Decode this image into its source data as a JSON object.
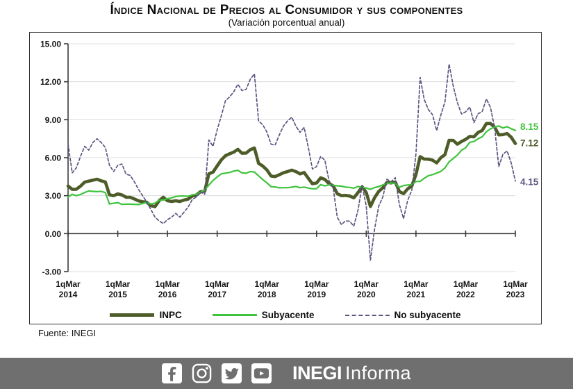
{
  "header": {
    "title": "Índice Nacional de Precios al Consumidor y sus componentes",
    "subtitle": "(Variación porcentual anual)"
  },
  "source_note": "Fuente: INEGI",
  "footer": {
    "bar_color": "#6f6f6f",
    "icons": [
      "facebook",
      "instagram",
      "twitter",
      "youtube"
    ],
    "logo_bold": "INEGI",
    "logo_regular": "Informa"
  },
  "chart_data": {
    "type": "line",
    "title": "Índice Nacional de Precios al Consumidor y sus componentes",
    "subtitle": "(Variación porcentual anual)",
    "ylabel": "",
    "xlabel": "",
    "ylim": [
      -3,
      15
    ],
    "grid": true,
    "legend_position": "bottom",
    "y_ticks": [
      "15.00",
      "12.00",
      "9.00",
      "6.00",
      "3.00",
      "0.00",
      "-3.00"
    ],
    "x_tick_prefix": "1qMar",
    "x_tick_years": [
      "2014",
      "2015",
      "2016",
      "2017",
      "2018",
      "2019",
      "2020",
      "2021",
      "2022",
      "2023"
    ],
    "x_resolution": "monthly points from Mar 2014 to 1q Mar 2023",
    "series": [
      {
        "name": "INPC",
        "color": "#4d5c28",
        "width": 4.6,
        "dash": null,
        "end_label": "7.12",
        "values": [
          3.76,
          3.5,
          3.51,
          3.75,
          4.07,
          4.15,
          4.22,
          4.3,
          4.17,
          4.08,
          3.07,
          3.0,
          3.14,
          3.06,
          2.88,
          2.87,
          2.74,
          2.59,
          2.52,
          2.48,
          2.21,
          2.13,
          2.61,
          2.87,
          2.6,
          2.54,
          2.6,
          2.54,
          2.65,
          2.73,
          2.97,
          3.06,
          3.31,
          3.36,
          4.72,
          4.86,
          5.35,
          5.82,
          6.16,
          6.31,
          6.44,
          6.66,
          6.35,
          6.37,
          6.63,
          6.77,
          5.55,
          5.34,
          5.04,
          4.55,
          4.51,
          4.65,
          4.81,
          4.9,
          5.02,
          4.9,
          4.72,
          4.83,
          4.37,
          3.94,
          4.0,
          4.41,
          4.28,
          3.95,
          3.78,
          3.16,
          3.0,
          3.02,
          2.97,
          2.83,
          3.24,
          3.7,
          3.25,
          2.15,
          2.84,
          3.33,
          3.62,
          4.05,
          4.01,
          4.09,
          3.33,
          3.15,
          3.54,
          3.76,
          4.67,
          6.08,
          5.89,
          5.88,
          5.81,
          5.59,
          6.0,
          6.24,
          7.37,
          7.36,
          7.07,
          7.28,
          7.45,
          7.68,
          7.65,
          7.99,
          8.15,
          8.7,
          8.7,
          8.41,
          7.8,
          7.82,
          7.91,
          7.62,
          7.12
        ]
      },
      {
        "name": "Subyacente",
        "color": "#3ec43c",
        "width": 2.2,
        "dash": null,
        "end_label": "8.15",
        "values": [
          2.89,
          3.11,
          3.0,
          3.09,
          3.25,
          3.37,
          3.34,
          3.32,
          3.34,
          3.24,
          2.34,
          2.4,
          2.45,
          2.31,
          2.33,
          2.33,
          2.31,
          2.3,
          2.38,
          2.47,
          2.34,
          2.41,
          2.64,
          2.66,
          2.76,
          2.83,
          2.93,
          2.97,
          2.97,
          2.95,
          3.07,
          3.1,
          3.29,
          3.44,
          3.84,
          4.2,
          4.48,
          4.72,
          4.78,
          4.83,
          4.94,
          5.0,
          4.8,
          4.77,
          4.9,
          4.87,
          4.56,
          4.27,
          4.02,
          3.71,
          3.69,
          3.62,
          3.63,
          3.63,
          3.67,
          3.73,
          3.63,
          3.68,
          3.6,
          3.54,
          3.55,
          3.87,
          3.77,
          3.85,
          3.82,
          3.78,
          3.75,
          3.68,
          3.65,
          3.59,
          3.73,
          3.66,
          3.6,
          3.5,
          3.64,
          3.71,
          3.85,
          3.97,
          3.99,
          3.98,
          3.66,
          3.8,
          3.84,
          3.87,
          4.12,
          4.13,
          4.37,
          4.58,
          4.66,
          4.78,
          4.92,
          5.19,
          5.67,
          5.94,
          6.21,
          6.59,
          6.78,
          7.22,
          7.28,
          7.49,
          7.65,
          8.05,
          8.28,
          8.42,
          8.51,
          8.35,
          8.45,
          8.29,
          8.15
        ]
      },
      {
        "name": "No subyacente",
        "color": "#5c5380",
        "width": 1.7,
        "dash": "4 3",
        "end_label": "4.15",
        "values": [
          7.1,
          4.8,
          5.2,
          6.1,
          6.9,
          6.6,
          7.2,
          7.5,
          7.2,
          6.8,
          5.4,
          4.9,
          5.4,
          5.5,
          4.7,
          4.6,
          4.1,
          3.5,
          3.0,
          2.5,
          1.9,
          1.3,
          1.0,
          0.8,
          1.1,
          1.3,
          1.6,
          1.3,
          1.7,
          2.1,
          2.7,
          2.9,
          3.3,
          3.1,
          7.4,
          6.9,
          8.2,
          9.3,
          10.5,
          10.8,
          11.2,
          11.8,
          11.3,
          11.4,
          12.2,
          12.62,
          8.9,
          8.6,
          8.03,
          7.07,
          7.0,
          7.79,
          8.5,
          8.9,
          9.2,
          8.5,
          8.0,
          8.39,
          6.81,
          5.1,
          5.3,
          6.1,
          5.8,
          4.19,
          3.64,
          1.3,
          0.71,
          1.01,
          0.98,
          0.59,
          1.84,
          3.81,
          2.19,
          -2.1,
          0.35,
          2.16,
          2.9,
          4.3,
          4.1,
          4.42,
          2.3,
          1.18,
          2.63,
          3.43,
          6.31,
          12.34,
          10.6,
          9.8,
          9.4,
          8.14,
          9.37,
          10.4,
          13.4,
          11.65,
          10.35,
          9.45,
          9.62,
          10.0,
          8.77,
          9.47,
          9.65,
          10.64,
          9.96,
          8.36,
          5.3,
          6.27,
          6.53,
          5.59,
          4.15
        ]
      }
    ]
  }
}
